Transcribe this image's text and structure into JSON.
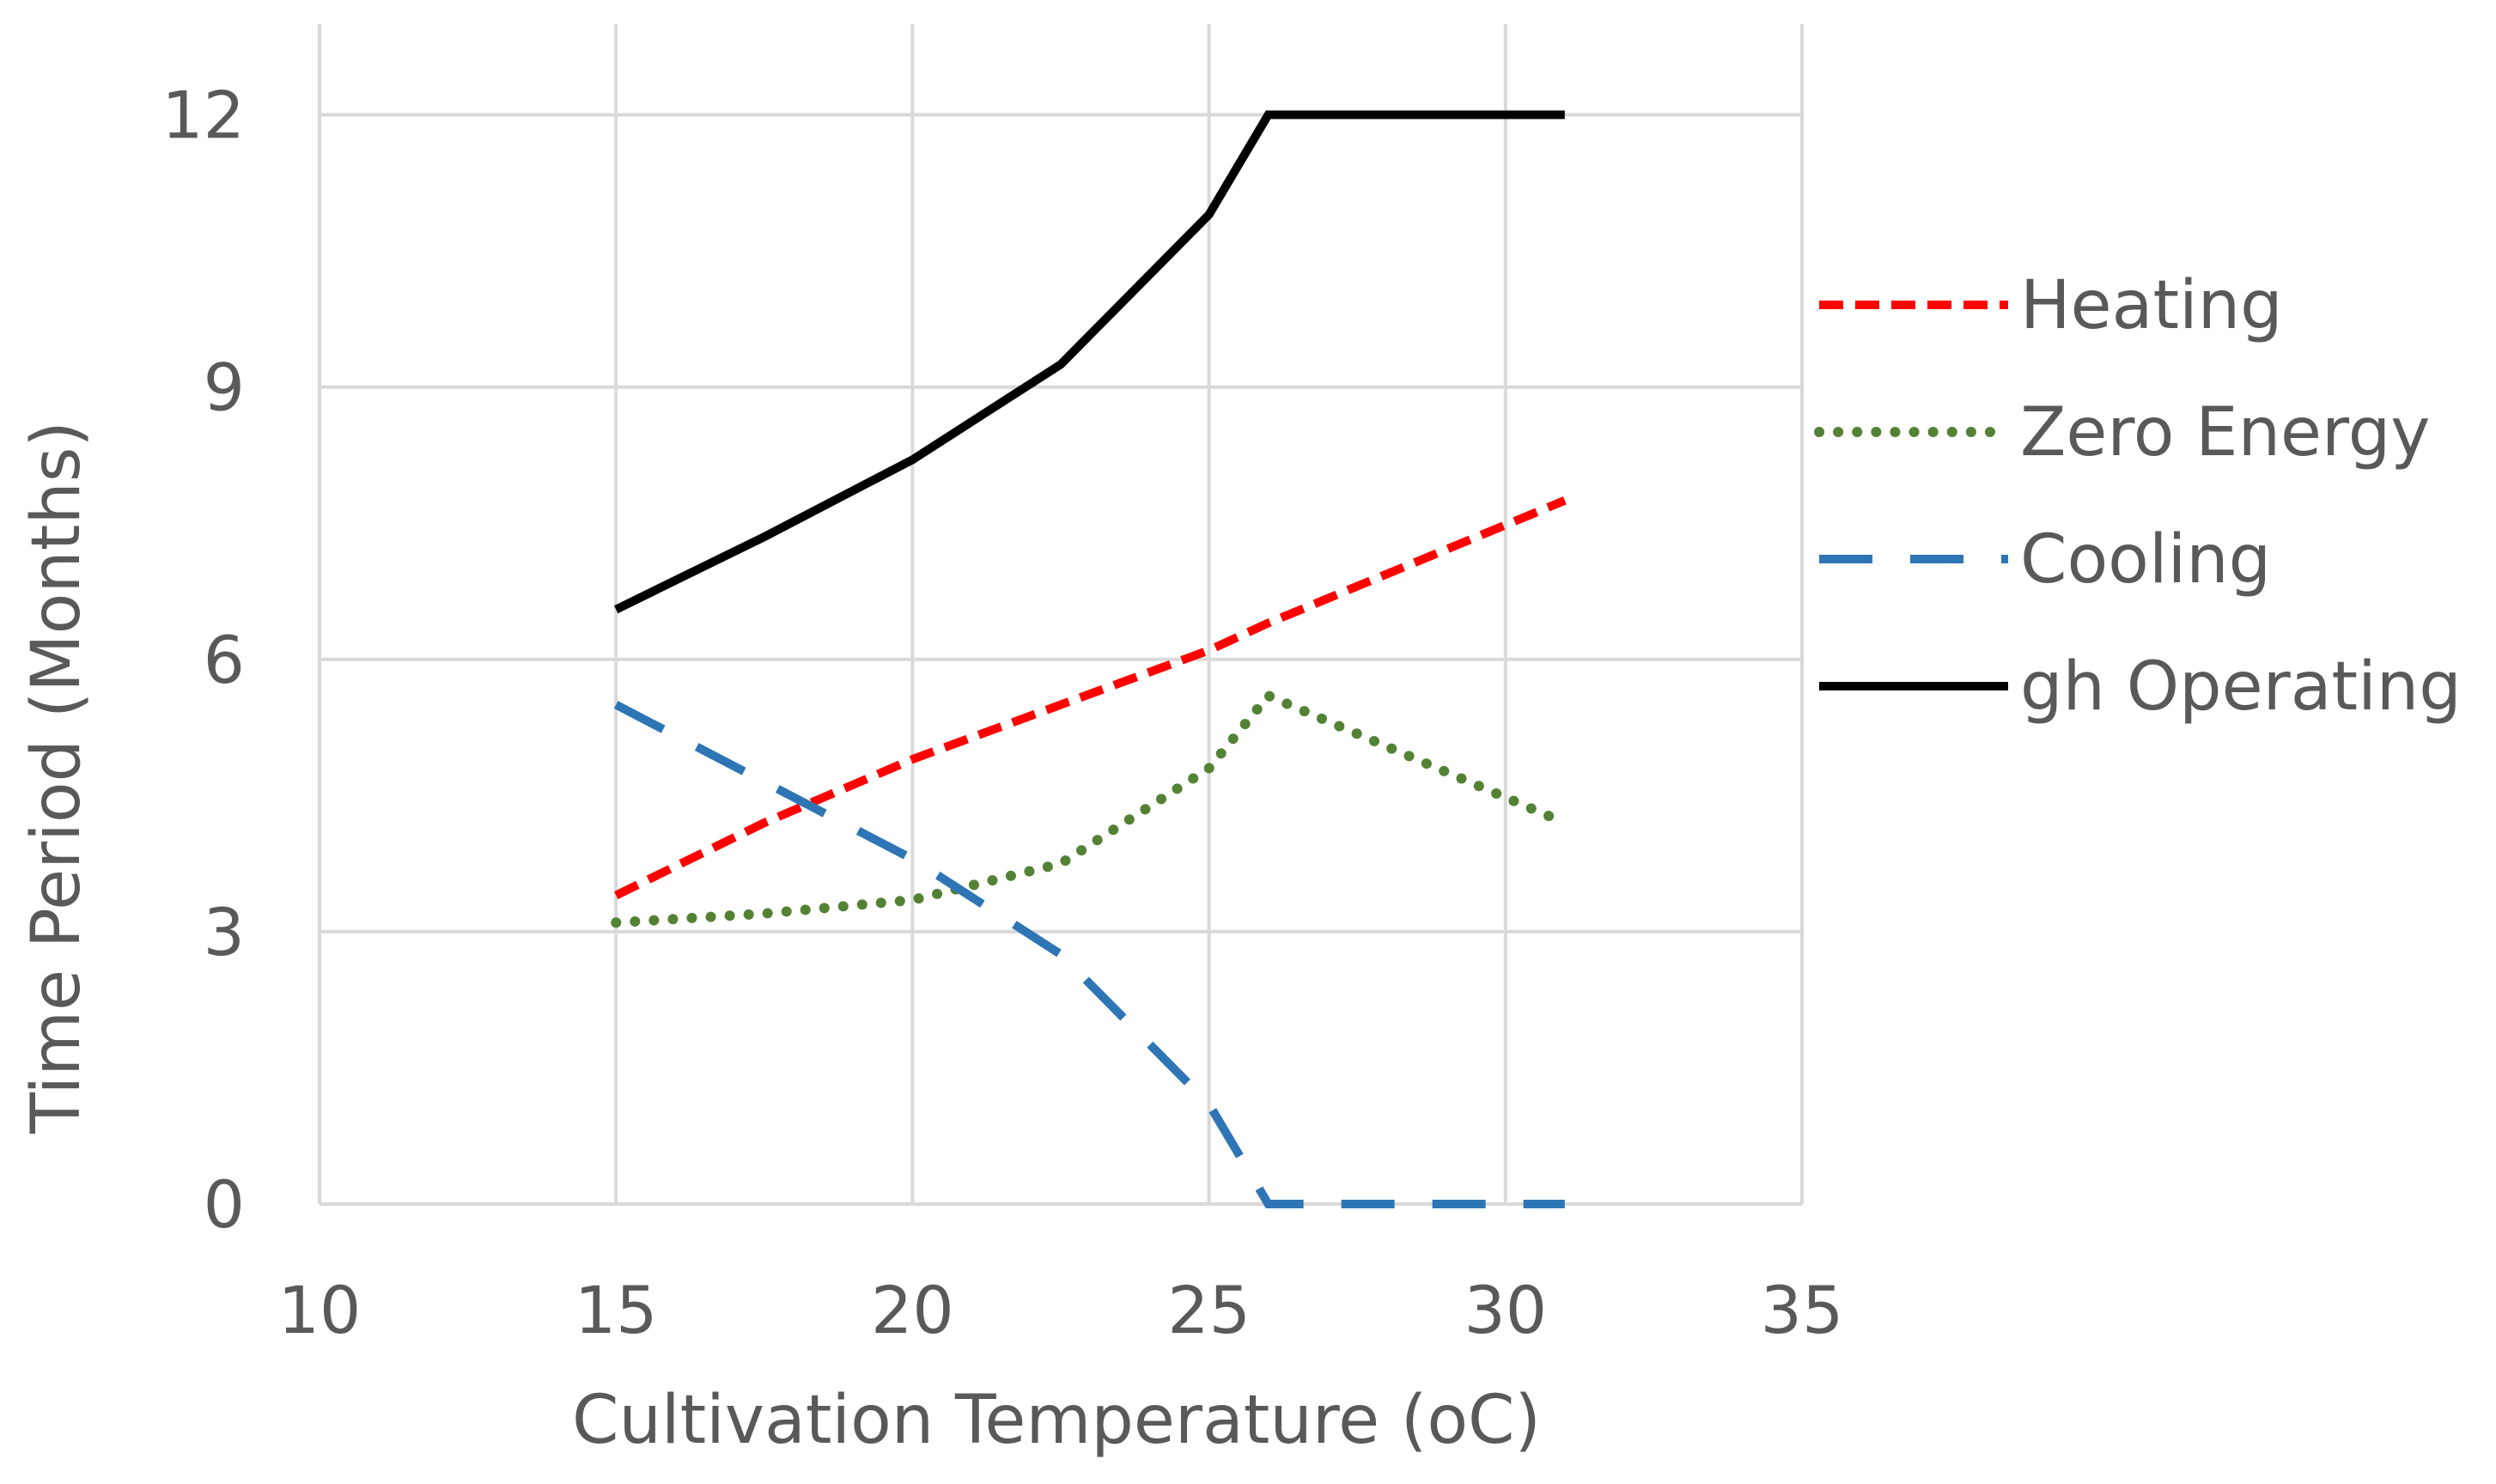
{
  "chart_data": {
    "type": "line",
    "title": "",
    "xlabel": "Cultivation Temperature (oC)",
    "ylabel": "Time Period (Months)",
    "xlim": [
      10,
      35
    ],
    "ylim": [
      0,
      13
    ],
    "xticks": [
      10,
      15,
      20,
      25,
      30,
      35
    ],
    "yticks": [
      0,
      3,
      6,
      9,
      12
    ],
    "grid": true,
    "legend_position": "right",
    "series": [
      {
        "name": "Heating",
        "color": "#ff0000",
        "style": "short-dash",
        "x": [
          15,
          17.5,
          20,
          22.5,
          25,
          26,
          31
        ],
        "y": [
          3.4,
          4.2,
          4.9,
          5.5,
          6.1,
          6.4,
          7.75
        ]
      },
      {
        "name": "Zero Energy",
        "color": "#548235",
        "style": "dotted",
        "x": [
          15,
          17.5,
          20,
          22.5,
          25,
          26,
          31
        ],
        "y": [
          3.1,
          3.2,
          3.35,
          3.75,
          4.8,
          5.6,
          4.2
        ]
      },
      {
        "name": "Cooling",
        "color": "#2e75b6",
        "style": "long-dash",
        "x": [
          15,
          17.5,
          20,
          22.5,
          25,
          26,
          31
        ],
        "y": [
          5.5,
          4.65,
          3.8,
          2.75,
          1.1,
          0,
          0
        ]
      },
      {
        "name": "gh Operating",
        "color": "#000000",
        "style": "solid",
        "x": [
          15,
          17.5,
          20,
          22.5,
          25,
          26,
          31
        ],
        "y": [
          6.55,
          7.35,
          8.2,
          9.25,
          10.9,
          12,
          12
        ]
      }
    ]
  }
}
